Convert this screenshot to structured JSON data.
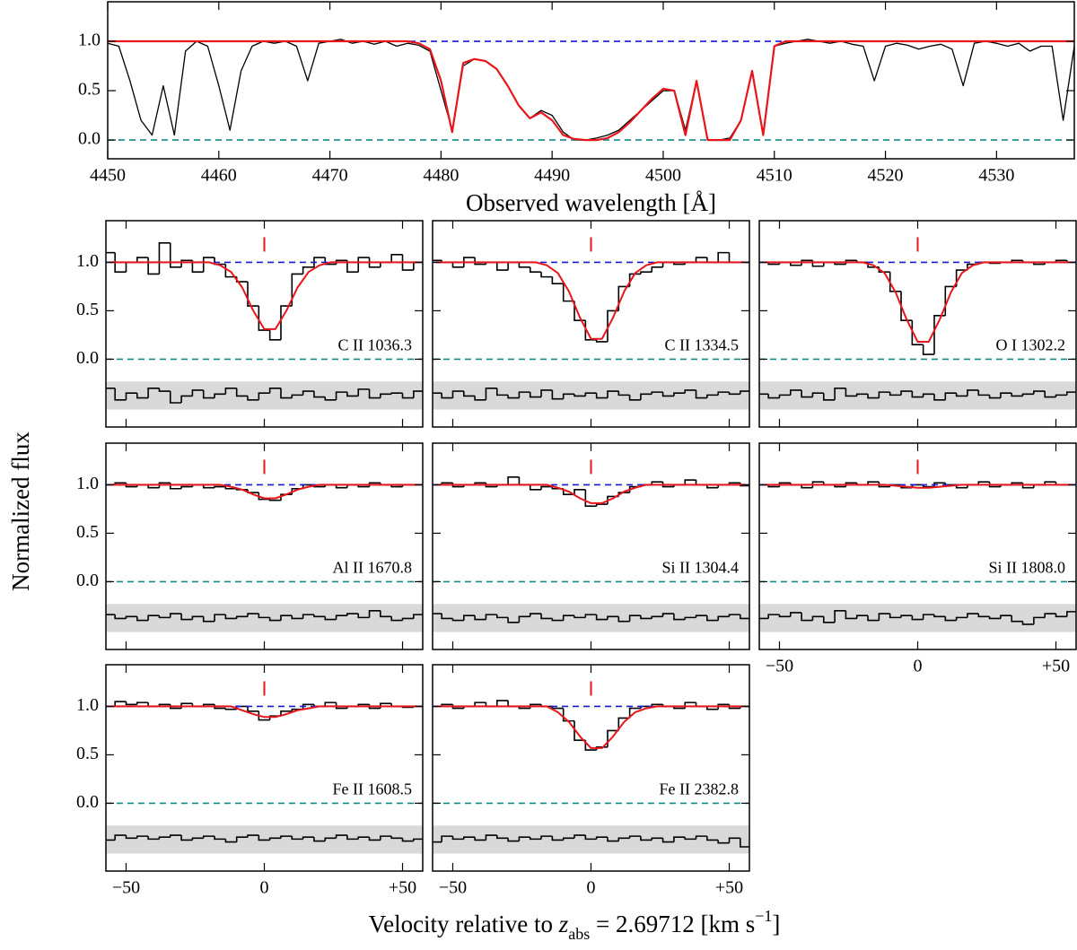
{
  "chart_data": [
    {
      "type": "line",
      "xlabel": "Observed wavelength [Å]",
      "xlim": [
        4450,
        4537
      ],
      "ylim": [
        -0.19,
        1.4
      ],
      "xticks": [
        4450,
        4460,
        4470,
        4480,
        4490,
        4500,
        4510,
        4520,
        4530
      ],
      "yticks": [
        {
          "value": 0,
          "label": "0.0"
        },
        {
          "value": 0.5,
          "label": "0.5"
        },
        {
          "value": 1,
          "label": "1.0"
        }
      ],
      "continuum_level": 1,
      "zero_level": 0,
      "continuum_color": "#1a1ad6",
      "zero_color": "#138a8a",
      "x": [
        4450,
        4451,
        4452,
        4453,
        4454,
        4455,
        4456,
        4457,
        4458,
        4459,
        4460,
        4461,
        4462,
        4463,
        4464,
        4465,
        4466,
        4467,
        4468,
        4469,
        4470,
        4471,
        4472,
        4473,
        4474,
        4475,
        4476,
        4477,
        4478,
        4479,
        4480,
        4481,
        4482,
        4483,
        4484,
        4485,
        4486,
        4487,
        4488,
        4489,
        4490,
        4491,
        4492,
        4493,
        4494,
        4495,
        4496,
        4497,
        4498,
        4499,
        4500,
        4501,
        4502,
        4503,
        4504,
        4505,
        4506,
        4507,
        4508,
        4509,
        4510,
        4511,
        4512,
        4513,
        4514,
        4515,
        4516,
        4517,
        4518,
        4519,
        4520,
        4521,
        4522,
        4523,
        4524,
        4525,
        4526,
        4527,
        4528,
        4529,
        4530,
        4531,
        4532,
        4533,
        4534,
        4535,
        4536,
        4537
      ],
      "series": [
        {
          "color": "#000000",
          "values": [
            0.98,
            0.95,
            0.6,
            0.2,
            0.05,
            0.55,
            0.05,
            0.9,
            1.0,
            0.95,
            0.55,
            0.1,
            0.7,
            0.95,
            1.0,
            0.98,
            1.0,
            0.95,
            0.6,
            0.98,
            1.0,
            1.02,
            0.98,
            1.0,
            0.97,
            1.0,
            0.95,
            0.98,
            0.96,
            0.9,
            0.5,
            0.1,
            0.75,
            0.82,
            0.8,
            0.72,
            0.55,
            0.35,
            0.22,
            0.3,
            0.25,
            0.08,
            0.0,
            0.0,
            0.02,
            0.05,
            0.1,
            0.2,
            0.3,
            0.4,
            0.5,
            0.5,
            0.1,
            0.6,
            0.0,
            0.0,
            0.02,
            0.2,
            0.7,
            0.05,
            0.95,
            0.98,
            1.0,
            1.02,
            1.0,
            0.98,
            1.0,
            0.97,
            0.95,
            0.6,
            0.95,
            0.98,
            0.96,
            0.92,
            0.95,
            0.97,
            0.92,
            0.55,
            0.98,
            1.0,
            0.98,
            0.95,
            0.98,
            0.9,
            0.95,
            0.95,
            0.2,
            0.95
          ]
        },
        {
          "color": "#e8161b",
          "values": [
            1,
            1,
            1,
            1,
            1,
            1,
            1,
            1,
            1,
            1,
            1,
            1,
            1,
            1,
            1,
            1,
            1,
            1,
            1,
            1,
            1,
            1,
            1,
            1,
            1,
            1,
            1,
            1,
            0.98,
            0.92,
            0.6,
            0.08,
            0.78,
            0.82,
            0.8,
            0.72,
            0.55,
            0.35,
            0.22,
            0.28,
            0.2,
            0.05,
            0.01,
            0.0,
            0.0,
            0.02,
            0.08,
            0.18,
            0.3,
            0.42,
            0.52,
            0.5,
            0.05,
            0.6,
            0.0,
            0.0,
            0.0,
            0.2,
            0.7,
            0.05,
            0.95,
            1,
            1,
            1,
            1,
            1,
            1,
            1,
            1,
            1,
            1,
            1,
            1,
            1,
            1,
            1,
            1,
            1,
            1,
            1,
            1,
            1,
            1,
            1,
            1,
            1,
            1,
            1
          ]
        }
      ]
    },
    {
      "type": "step",
      "ylabel": "Normalized flux",
      "xlabel_parts": [
        "Velocity relative to ",
        "z",
        "abs",
        " = 2.69712 [km s",
        "−1",
        "]"
      ],
      "xlim": [
        -57.3,
        57.3
      ],
      "ylim": [
        -0.7,
        1.43
      ],
      "xticks": [
        {
          "value": -50,
          "label": "−50"
        },
        0,
        {
          "value": 50,
          "label": "+50"
        }
      ],
      "yticks": [
        {
          "value": 0,
          "label": "0.0"
        },
        {
          "value": 0.5,
          "label": "0.5"
        },
        {
          "value": 1,
          "label": "1.0"
        }
      ],
      "continuum_level": 1,
      "zero_level": 0,
      "residual_band": [
        -0.52,
        -0.23
      ],
      "marker_velocity": 0,
      "flux_color": "#000000",
      "model_color": "#e8161b",
      "continuum_color": "#1a1ad6",
      "zero_color": "#138a8a",
      "band_color": "#d9d9d9",
      "x": [
        -56,
        -52,
        -48,
        -44,
        -40,
        -36,
        -32,
        -28,
        -24,
        -20,
        -16,
        -12,
        -8,
        -4,
        0,
        4,
        8,
        12,
        16,
        20,
        24,
        28,
        32,
        36,
        40,
        44,
        48,
        52,
        56
      ],
      "panels": [
        {
          "label": "C II 1036.3",
          "flux": [
            1.1,
            0.9,
            1.0,
            1.05,
            0.88,
            1.2,
            0.95,
            1.02,
            0.9,
            1.05,
            0.98,
            0.85,
            0.8,
            0.55,
            0.3,
            0.2,
            0.55,
            0.88,
            0.95,
            1.05,
            0.98,
            1.02,
            0.9,
            1.05,
            0.95,
            1.0,
            1.08,
            0.92,
            1.0
          ],
          "model": [
            1,
            1,
            1,
            1,
            1,
            1,
            1,
            1,
            1,
            1,
            0.97,
            0.9,
            0.74,
            0.5,
            0.31,
            0.31,
            0.5,
            0.74,
            0.9,
            0.97,
            1,
            1,
            1,
            1,
            1,
            1,
            1,
            1,
            1
          ],
          "residual": [
            -0.3,
            -0.42,
            -0.35,
            -0.4,
            -0.3,
            -0.33,
            -0.45,
            -0.38,
            -0.32,
            -0.4,
            -0.36,
            -0.3,
            -0.38,
            -0.42,
            -0.35,
            -0.3,
            -0.4,
            -0.37,
            -0.33,
            -0.39,
            -0.42,
            -0.34,
            -0.38,
            -0.31,
            -0.4,
            -0.36,
            -0.35,
            -0.4,
            -0.33
          ]
        },
        {
          "label": "C II 1334.5",
          "flux": [
            1.02,
            1.0,
            0.95,
            1.05,
            0.98,
            1.0,
            0.92,
            1.0,
            0.95,
            0.9,
            0.85,
            0.78,
            0.6,
            0.4,
            0.2,
            0.18,
            0.5,
            0.75,
            0.88,
            0.9,
            0.95,
            1.0,
            0.98,
            1.0,
            1.05,
            1.0,
            1.1,
            1.0,
            1.0
          ],
          "model": [
            1,
            1,
            1,
            1,
            1,
            1,
            1,
            1,
            1,
            1,
            0.97,
            0.89,
            0.7,
            0.43,
            0.21,
            0.21,
            0.43,
            0.7,
            0.89,
            0.97,
            1,
            1,
            1,
            1,
            1,
            1,
            1,
            1,
            1
          ],
          "residual": [
            -0.35,
            -0.4,
            -0.33,
            -0.38,
            -0.42,
            -0.3,
            -0.37,
            -0.4,
            -0.34,
            -0.39,
            -0.32,
            -0.41,
            -0.36,
            -0.38,
            -0.35,
            -0.4,
            -0.33,
            -0.37,
            -0.42,
            -0.36,
            -0.34,
            -0.38,
            -0.35,
            -0.32,
            -0.4,
            -0.37,
            -0.34,
            -0.36,
            -0.33
          ]
        },
        {
          "label": "O I 1302.2",
          "flux": [
            1.0,
            0.98,
            1.0,
            0.97,
            1.02,
            0.96,
            1.0,
            0.98,
            1.02,
            1.0,
            0.95,
            0.9,
            0.7,
            0.4,
            0.15,
            0.05,
            0.45,
            0.75,
            0.92,
            0.98,
            1.0,
            0.99,
            1.0,
            1.02,
            1.0,
            0.98,
            1.0,
            1.02,
            1.0
          ],
          "model": [
            1,
            1,
            1,
            1,
            1,
            1,
            1,
            1,
            1,
            1,
            0.97,
            0.89,
            0.69,
            0.41,
            0.18,
            0.18,
            0.41,
            0.69,
            0.89,
            0.97,
            1,
            1,
            1,
            1,
            1,
            1,
            1,
            1,
            1
          ],
          "residual": [
            -0.36,
            -0.4,
            -0.37,
            -0.32,
            -0.39,
            -0.35,
            -0.42,
            -0.3,
            -0.38,
            -0.36,
            -0.4,
            -0.34,
            -0.37,
            -0.33,
            -0.39,
            -0.36,
            -0.42,
            -0.35,
            -0.38,
            -0.32,
            -0.37,
            -0.4,
            -0.35,
            -0.38,
            -0.36,
            -0.33,
            -0.39,
            -0.37,
            -0.34
          ]
        },
        {
          "label": "Al II 1670.8",
          "flux": [
            1.0,
            1.02,
            0.98,
            1.0,
            0.97,
            1.02,
            0.96,
            0.98,
            1.0,
            0.97,
            0.98,
            0.96,
            0.95,
            0.92,
            0.85,
            0.84,
            0.9,
            0.96,
            1.0,
            0.98,
            1.0,
            0.97,
            1.0,
            0.98,
            1.02,
            1.0,
            0.98,
            1.0,
            1.0
          ],
          "model": [
            1,
            1,
            1,
            1,
            1,
            1,
            1,
            1,
            1,
            1,
            1,
            0.98,
            0.95,
            0.9,
            0.86,
            0.86,
            0.9,
            0.95,
            0.98,
            1,
            1,
            1,
            1,
            1,
            1,
            1,
            1,
            1,
            1
          ],
          "residual": [
            -0.34,
            -0.38,
            -0.36,
            -0.4,
            -0.35,
            -0.37,
            -0.33,
            -0.39,
            -0.36,
            -0.41,
            -0.34,
            -0.38,
            -0.36,
            -0.33,
            -0.37,
            -0.4,
            -0.35,
            -0.38,
            -0.34,
            -0.36,
            -0.39,
            -0.35,
            -0.33,
            -0.37,
            -0.3,
            -0.36,
            -0.4,
            -0.38,
            -0.34
          ]
        },
        {
          "label": "Si II 1304.4",
          "flux": [
            1.0,
            1.02,
            0.98,
            1.0,
            1.02,
            0.98,
            1.0,
            1.08,
            1.0,
            0.95,
            0.98,
            0.96,
            0.9,
            0.95,
            0.78,
            0.8,
            0.88,
            0.92,
            0.98,
            1.0,
            1.03,
            0.98,
            1.0,
            1.05,
            1.0,
            0.97,
            1.0,
            1.02,
            0.99
          ],
          "model": [
            1,
            1,
            1,
            1,
            1,
            1,
            1,
            1,
            1,
            1,
            1,
            0.97,
            0.93,
            0.86,
            0.81,
            0.81,
            0.86,
            0.93,
            0.97,
            1,
            1,
            1,
            1,
            1,
            1,
            1,
            1,
            1,
            1
          ],
          "residual": [
            -0.33,
            -0.38,
            -0.4,
            -0.35,
            -0.39,
            -0.34,
            -0.37,
            -0.42,
            -0.36,
            -0.33,
            -0.38,
            -0.4,
            -0.35,
            -0.37,
            -0.34,
            -0.39,
            -0.36,
            -0.41,
            -0.35,
            -0.38,
            -0.36,
            -0.33,
            -0.39,
            -0.37,
            -0.35,
            -0.4,
            -0.36,
            -0.34,
            -0.38
          ]
        },
        {
          "label": "Si II 1808.0",
          "flux": [
            1.0,
            0.98,
            1.02,
            1.0,
            0.97,
            1.03,
            1.0,
            0.98,
            1.02,
            1.0,
            1.03,
            0.98,
            1.0,
            0.97,
            1.0,
            0.98,
            1.02,
            1.0,
            0.97,
            1.0,
            1.03,
            0.98,
            1.0,
            1.02,
            0.97,
            1.0,
            1.03,
            1.0,
            1.0
          ],
          "model": [
            1,
            1,
            1,
            1,
            1,
            1,
            1,
            1,
            1,
            1,
            1,
            1,
            0.99,
            0.98,
            0.97,
            0.97,
            0.98,
            0.99,
            1,
            1,
            1,
            1,
            1,
            1,
            1,
            1,
            1,
            1,
            1
          ],
          "residual": [
            -0.38,
            -0.34,
            -0.36,
            -0.32,
            -0.4,
            -0.36,
            -0.42,
            -0.3,
            -0.38,
            -0.35,
            -0.4,
            -0.33,
            -0.37,
            -0.35,
            -0.39,
            -0.34,
            -0.36,
            -0.4,
            -0.37,
            -0.33,
            -0.36,
            -0.38,
            -0.35,
            -0.41,
            -0.44,
            -0.37,
            -0.33,
            -0.36,
            -0.31
          ]
        },
        {
          "label": "Fe II 1608.5",
          "flux": [
            1.0,
            1.05,
            1.02,
            1.04,
            1.0,
            1.02,
            0.98,
            1.03,
            1.0,
            1.02,
            0.98,
            0.97,
            1.0,
            0.95,
            0.86,
            0.9,
            0.95,
            0.97,
            1.02,
            1.0,
            1.04,
            0.98,
            1.0,
            1.02,
            0.98,
            1.03,
            1.0,
            0.99,
            1.0
          ],
          "model": [
            1,
            1,
            1,
            1,
            1,
            1,
            1,
            1,
            1,
            1,
            1,
            1,
            0.96,
            0.92,
            0.89,
            0.89,
            0.92,
            0.96,
            0.98,
            1,
            1,
            1,
            1,
            1,
            1,
            1,
            1,
            1,
            1
          ],
          "residual": [
            -0.38,
            -0.33,
            -0.36,
            -0.34,
            -0.37,
            -0.35,
            -0.33,
            -0.38,
            -0.36,
            -0.34,
            -0.37,
            -0.4,
            -0.35,
            -0.33,
            -0.38,
            -0.36,
            -0.34,
            -0.37,
            -0.35,
            -0.39,
            -0.36,
            -0.33,
            -0.37,
            -0.35,
            -0.38,
            -0.34,
            -0.36,
            -0.39,
            -0.37
          ]
        },
        {
          "label": "Fe II 2382.8",
          "flux": [
            1.0,
            1.02,
            0.98,
            1.0,
            1.04,
            1.0,
            1.06,
            1.0,
            0.98,
            1.02,
            1.0,
            0.98,
            0.85,
            0.65,
            0.55,
            0.58,
            0.75,
            0.88,
            0.98,
            1.0,
            1.02,
            1.0,
            0.98,
            1.04,
            1.0,
            0.97,
            1.02,
            0.98,
            1.0
          ],
          "model": [
            1,
            1,
            1,
            1,
            1,
            1,
            1,
            1,
            1,
            1,
            1,
            0.94,
            0.84,
            0.69,
            0.57,
            0.57,
            0.69,
            0.84,
            0.94,
            0.98,
            1,
            1,
            1,
            1,
            1,
            1,
            1,
            1,
            1
          ],
          "residual": [
            -0.4,
            -0.34,
            -0.37,
            -0.35,
            -0.38,
            -0.33,
            -0.36,
            -0.39,
            -0.35,
            -0.37,
            -0.34,
            -0.38,
            -0.36,
            -0.33,
            -0.37,
            -0.35,
            -0.39,
            -0.36,
            -0.34,
            -0.38,
            -0.36,
            -0.4,
            -0.35,
            -0.37,
            -0.34,
            -0.38,
            -0.41,
            -0.36,
            -0.45
          ]
        }
      ]
    }
  ]
}
